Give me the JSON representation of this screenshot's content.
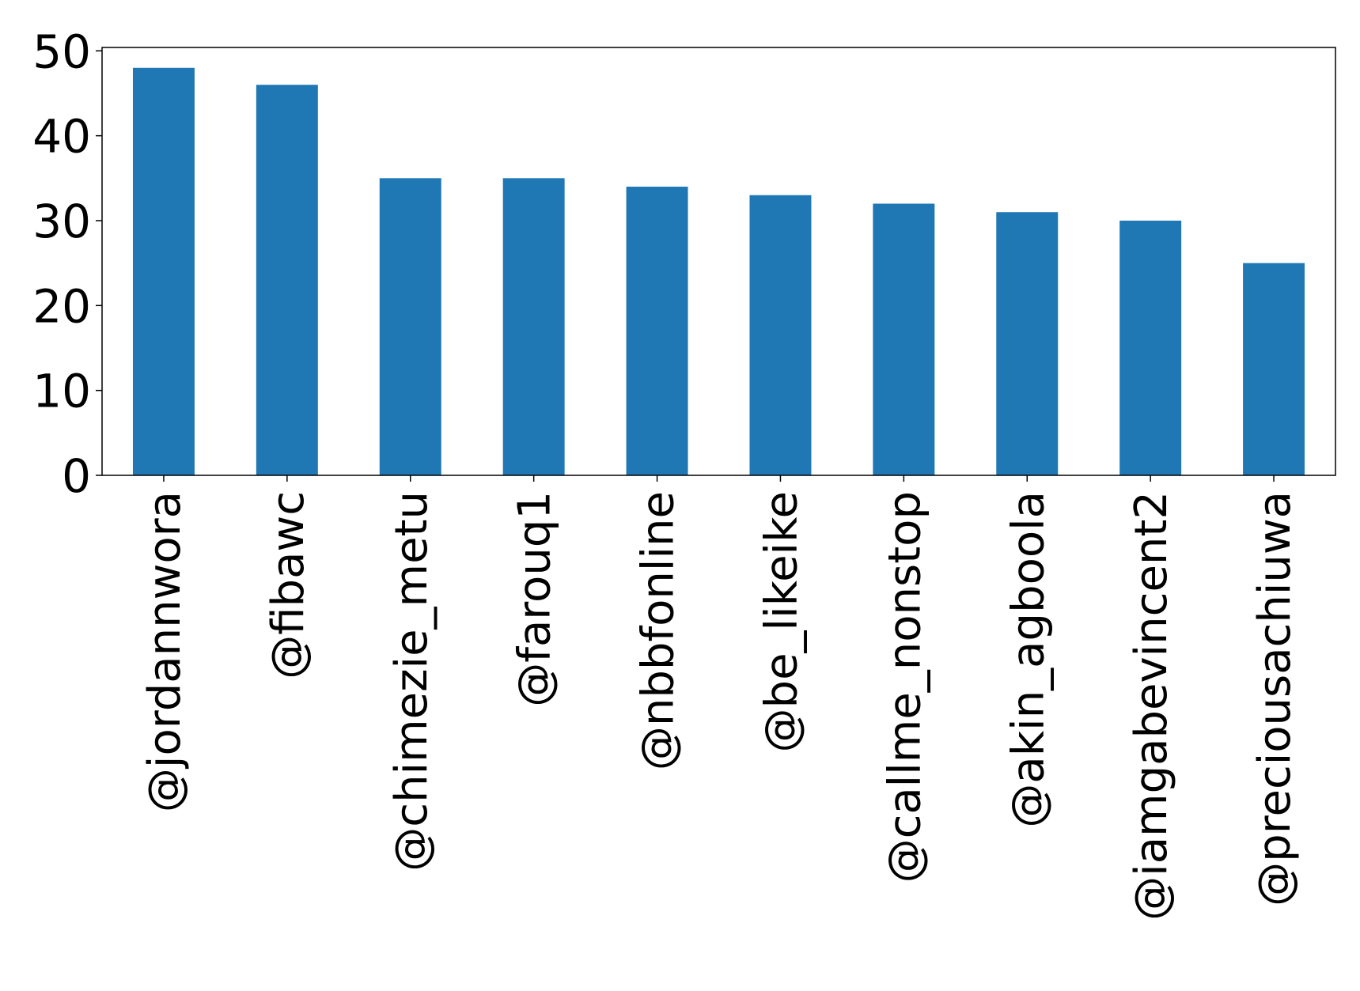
{
  "chart_data": {
    "type": "bar",
    "title": "",
    "xlabel": "",
    "ylabel": "",
    "categories": [
      "@jordannwora",
      "@fibawc",
      "@chimezie_metu",
      "@farouq1",
      "@nbbfonline",
      "@be_likeike",
      "@callme_nonstop",
      "@akin_agboola",
      "@iamgabevincent2",
      "@preciousachiuwa"
    ],
    "values": [
      48,
      46,
      35,
      35,
      34,
      33,
      32,
      31,
      30,
      25
    ],
    "ylim": [
      0,
      50.4
    ],
    "yticks": [
      0,
      10,
      20,
      30,
      40,
      50
    ],
    "ytick_labels": [
      "0",
      "10",
      "20",
      "30",
      "40",
      "50"
    ],
    "grid": false,
    "legend": "none",
    "bar_color": "#1f77b4"
  }
}
